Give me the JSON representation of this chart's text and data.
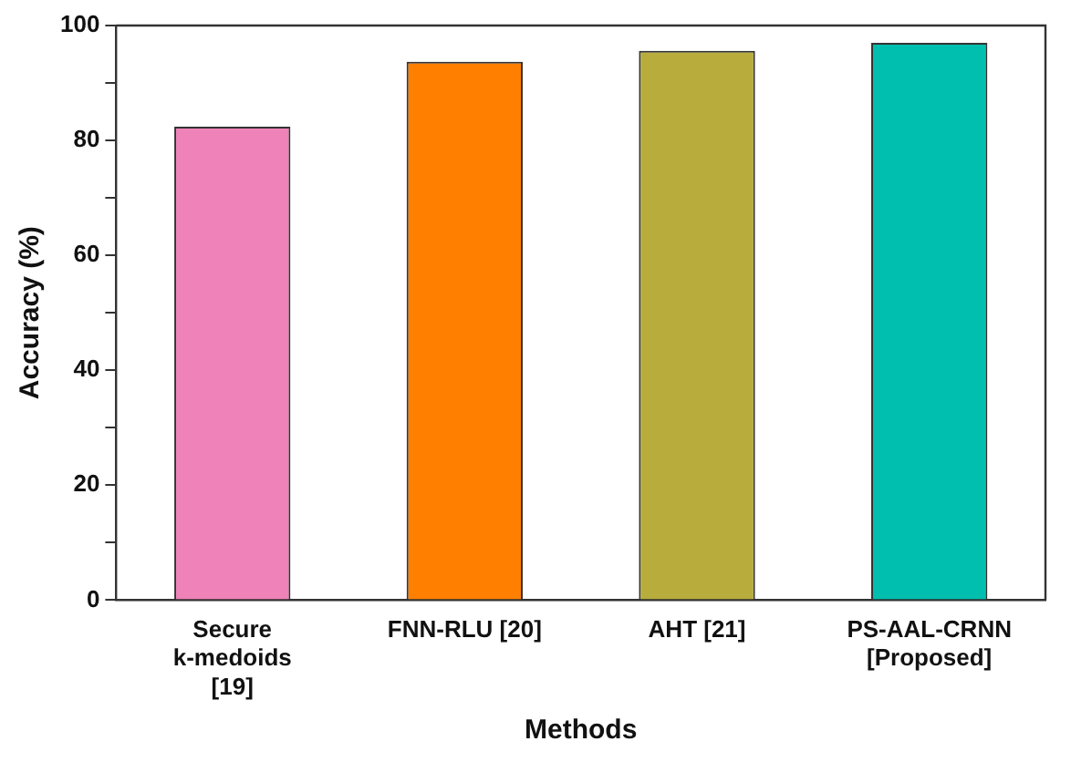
{
  "chart_data": {
    "type": "bar",
    "xlabel": "Methods",
    "ylabel": "Accuracy (%)",
    "categories": [
      "Secure\nk-medoids\n[19]",
      "FNN-RLU [20]",
      "AHT [21]",
      "PS-AAL-CRNN\n[Proposed]"
    ],
    "values": [
      82.4,
      93.7,
      95.6,
      97.0
    ],
    "colors": [
      "#ef82b8",
      "#ff7f00",
      "#b8ad3c",
      "#00bfae"
    ],
    "ylim": [
      0,
      100
    ],
    "yticks": [
      0,
      {
        "value": 10,
        "label": null
      },
      20,
      {
        "value": 30,
        "label": null
      },
      40,
      {
        "value": 50,
        "label": null
      },
      60,
      {
        "value": 70,
        "label": null
      },
      80,
      {
        "value": 90,
        "label": null
      },
      100
    ],
    "grid": false,
    "legend": false
  }
}
